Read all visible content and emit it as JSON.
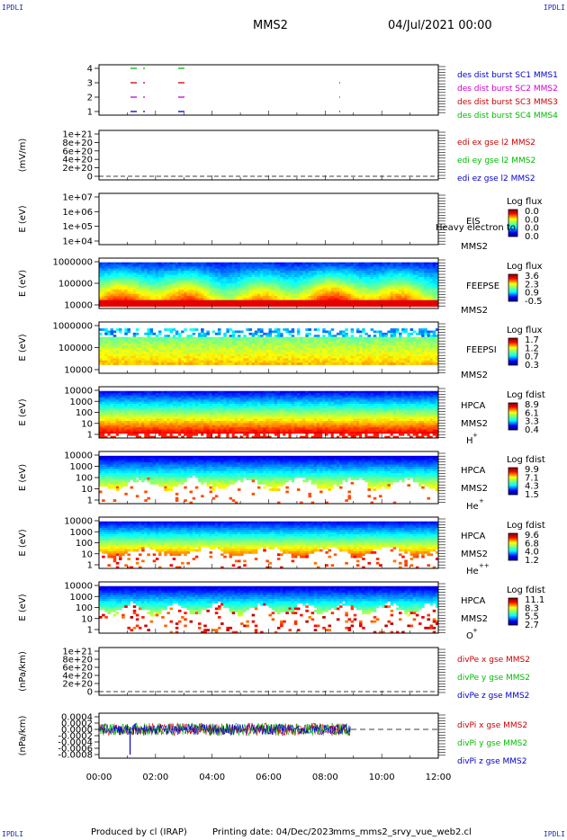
{
  "corners": {
    "tl": "IPDLI",
    "tr": "IPDLI",
    "bl": "IPDLI",
    "br": "IPDLI"
  },
  "header": {
    "title": "MMS2",
    "date": "04/Jul/2021 00:00"
  },
  "footer": {
    "produced": "Produced by cl (IRAP)",
    "printing": "Printing date: 04/Dec/2023",
    "file": "mms_mms2_srvy_vue_web2.cl"
  },
  "xaxis": {
    "ticks": [
      "00:00",
      "02:00",
      "04:00",
      "06:00",
      "08:00",
      "10:00",
      "12:00"
    ]
  },
  "colors": {
    "sc1": "#0000cc",
    "sc2": "#cc00cc",
    "sc3": "#cc0000",
    "sc4": "#00bb00",
    "blue": "#0000cc",
    "green": "#00bb00",
    "red": "#cc0000",
    "black": "#000000"
  },
  "chart_data": [
    {
      "type": "scatter",
      "id": "burst",
      "yticks": [
        "4",
        "3",
        "2",
        "1"
      ],
      "legend": [
        {
          "text": "des dist burst SC1 MMS1",
          "color": "#0000cc"
        },
        {
          "text": "des dist burst SC2 MMS2",
          "color": "#cc00cc"
        },
        {
          "text": "des dist burst SC3 MMS3",
          "color": "#cc0000"
        },
        {
          "text": "des dist burst SC4 MMS4",
          "color": "#00bb00"
        }
      ]
    },
    {
      "type": "line",
      "id": "edi",
      "ylabel": "(mV/m)",
      "yticks": [
        "1e+21",
        "8e+20",
        "6e+20",
        "4e+20",
        "2e+20",
        "0"
      ],
      "legend": [
        {
          "text": "edi ex gse l2 MMS2",
          "color": "#cc0000"
        },
        {
          "text": "edi ey gse l2 MMS2",
          "color": "#00bb00"
        },
        {
          "text": "edi ez gse l2 MMS2",
          "color": "#0000cc"
        }
      ]
    },
    {
      "type": "heatmap",
      "id": "eis",
      "ylabel": "E (eV)",
      "yticks": [
        "1e+07",
        "1e+06",
        "1e+05",
        "1e+04"
      ],
      "side": [
        "EIS",
        "MMS2"
      ],
      "overlay": "Heavy electron to",
      "cbar_title": "Log flux",
      "cbar_ticks": [
        "0.0",
        "0.0",
        "0.0",
        "0.0"
      ]
    },
    {
      "type": "heatmap",
      "id": "feepse",
      "ylabel": "E (eV)",
      "yticks": [
        "1000000",
        "100000",
        "10000"
      ],
      "side": [
        "FEEPSE",
        "MMS2"
      ],
      "cbar_title": "Log flux",
      "cbar_ticks": [
        "3.6",
        "2.3",
        "0.9",
        "-0.5"
      ]
    },
    {
      "type": "heatmap",
      "id": "feepsi",
      "ylabel": "E (eV)",
      "yticks": [
        "1000000",
        "100000",
        "10000"
      ],
      "side": [
        "FEEPSI",
        "MMS2"
      ],
      "cbar_title": "Log flux",
      "cbar_ticks": [
        "1.7",
        "1.2",
        "0.7",
        "0.3"
      ]
    },
    {
      "type": "heatmap",
      "id": "hpca_h",
      "ylabel": "E (eV)",
      "yticks": [
        "10000",
        "1000",
        "100",
        "10",
        "1"
      ],
      "side": [
        "HPCA",
        "MMS2",
        "H",
        "+"
      ],
      "cbar_title": "Log fdist",
      "cbar_ticks": [
        "8.9",
        "6.1",
        "3.3",
        "0.4"
      ]
    },
    {
      "type": "heatmap",
      "id": "hpca_he",
      "ylabel": "E (eV)",
      "yticks": [
        "10000",
        "1000",
        "100",
        "10",
        "1"
      ],
      "side": [
        "HPCA",
        "MMS2",
        "He",
        "+"
      ],
      "cbar_title": "Log fdist",
      "cbar_ticks": [
        "9.9",
        "7.1",
        "4.3",
        "1.5"
      ]
    },
    {
      "type": "heatmap",
      "id": "hpca_hepp",
      "ylabel": "E (eV)",
      "yticks": [
        "10000",
        "1000",
        "100",
        "10",
        "1"
      ],
      "side": [
        "HPCA",
        "MMS2",
        "He",
        "++"
      ],
      "cbar_title": "Log fdist",
      "cbar_ticks": [
        "9.6",
        "6.8",
        "4.0",
        "1.2"
      ]
    },
    {
      "type": "heatmap",
      "id": "hpca_o",
      "ylabel": "E (eV)",
      "yticks": [
        "10000",
        "1000",
        "100",
        "10",
        "1"
      ],
      "side": [
        "HPCA",
        "MMS2",
        "O",
        "+"
      ],
      "cbar_title": "Log fdist",
      "cbar_ticks": [
        "11.1",
        "8.3",
        "5.5",
        "2.7"
      ]
    },
    {
      "type": "line",
      "id": "divpe",
      "ylabel": "(nPa/km)",
      "yticks": [
        "1e+21",
        "8e+20",
        "6e+20",
        "4e+20",
        "2e+20",
        "0"
      ],
      "legend": [
        {
          "text": "divPe x gse MMS2",
          "color": "#cc0000"
        },
        {
          "text": "divPe y gse MMS2",
          "color": "#00bb00"
        },
        {
          "text": "divPe z gse MMS2",
          "color": "#0000cc"
        }
      ]
    },
    {
      "type": "line",
      "id": "divpi",
      "ylabel": "(nPa/km)",
      "yticks": [
        "0.0004",
        "0.0002",
        "0.0000",
        "-0.0002",
        "-0.0004",
        "-0.0006",
        "-0.0008"
      ],
      "legend": [
        {
          "text": "divPi x gse MMS2",
          "color": "#cc0000"
        },
        {
          "text": "divPi y gse MMS2",
          "color": "#00bb00"
        },
        {
          "text": "divPi z gse MMS2",
          "color": "#0000cc"
        }
      ]
    }
  ]
}
